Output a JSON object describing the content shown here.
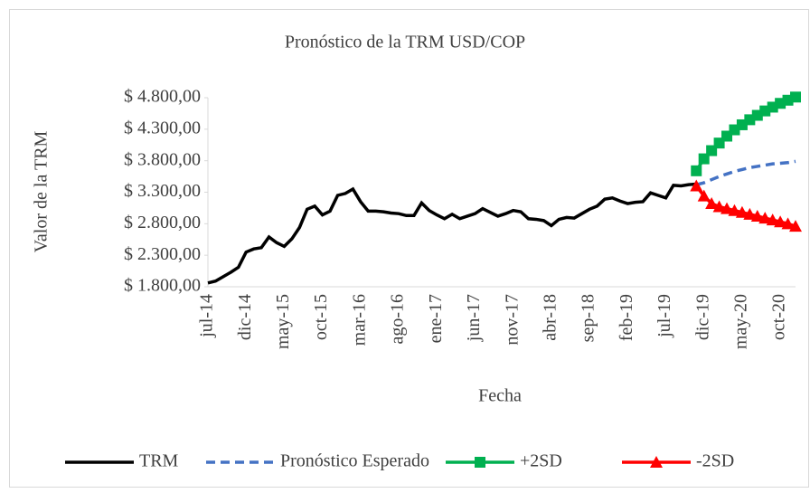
{
  "chart_data": {
    "type": "line",
    "title": "Pronóstico de la TRM USD/COP",
    "x_label": "Fecha",
    "y_label": "Valor de la TRM",
    "categories": [
      "jul-14",
      null,
      null,
      null,
      null,
      "dic-14",
      null,
      null,
      null,
      null,
      "may-15",
      null,
      null,
      null,
      null,
      "oct-15",
      null,
      null,
      null,
      null,
      "mar-16",
      null,
      null,
      null,
      null,
      "ago-16",
      null,
      null,
      null,
      null,
      "ene-17",
      null,
      null,
      null,
      null,
      "jun-17",
      null,
      null,
      null,
      null,
      "nov-17",
      null,
      null,
      null,
      null,
      "abr-18",
      null,
      null,
      null,
      null,
      "sep-18",
      null,
      null,
      null,
      null,
      "feb-19",
      null,
      null,
      null,
      null,
      "jul-19",
      null,
      null,
      null,
      null,
      "dic-19",
      null,
      null,
      null,
      null,
      "may-20",
      null,
      null,
      null,
      null,
      "oct-20",
      null,
      null
    ],
    "series": [
      {
        "name": "TRM",
        "color": "#000000",
        "style": "solid",
        "marker": "none",
        "values": [
          1860,
          1890,
          1960,
          2030,
          2110,
          2350,
          2400,
          2420,
          2590,
          2500,
          2440,
          2560,
          2740,
          3030,
          3080,
          2940,
          3000,
          3250,
          3280,
          3350,
          3150,
          3000,
          3000,
          2990,
          2970,
          2960,
          2930,
          2930,
          3130,
          3010,
          2940,
          2880,
          2950,
          2880,
          2920,
          2960,
          3040,
          2980,
          2920,
          2960,
          3010,
          2990,
          2880,
          2870,
          2850,
          2770,
          2870,
          2900,
          2890,
          2960,
          3030,
          3080,
          3190,
          3210,
          3160,
          3120,
          3140,
          3150,
          3290,
          3250,
          3210,
          3410,
          3400,
          3420,
          3430,
          null,
          null,
          null,
          null,
          null,
          null,
          null,
          null,
          null,
          null,
          null,
          null,
          null
        ]
      },
      {
        "name": "Pronóstico Esperado",
        "color": "#4472c4",
        "style": "dashed",
        "marker": "none",
        "values": [
          null,
          null,
          null,
          null,
          null,
          null,
          null,
          null,
          null,
          null,
          null,
          null,
          null,
          null,
          null,
          null,
          null,
          null,
          null,
          null,
          null,
          null,
          null,
          null,
          null,
          null,
          null,
          null,
          null,
          null,
          null,
          null,
          null,
          null,
          null,
          null,
          null,
          null,
          null,
          null,
          null,
          null,
          null,
          null,
          null,
          null,
          null,
          null,
          null,
          null,
          null,
          null,
          null,
          null,
          null,
          null,
          null,
          null,
          null,
          null,
          null,
          null,
          null,
          null,
          3420,
          3450,
          3500,
          3550,
          3590,
          3630,
          3660,
          3690,
          3710,
          3730,
          3750,
          3760,
          3770,
          3790
        ]
      },
      {
        "name": "+2SD",
        "color": "#00b050",
        "style": "solid",
        "marker": "square",
        "values": [
          null,
          null,
          null,
          null,
          null,
          null,
          null,
          null,
          null,
          null,
          null,
          null,
          null,
          null,
          null,
          null,
          null,
          null,
          null,
          null,
          null,
          null,
          null,
          null,
          null,
          null,
          null,
          null,
          null,
          null,
          null,
          null,
          null,
          null,
          null,
          null,
          null,
          null,
          null,
          null,
          null,
          null,
          null,
          null,
          null,
          null,
          null,
          null,
          null,
          null,
          null,
          null,
          null,
          null,
          null,
          null,
          null,
          null,
          null,
          null,
          null,
          null,
          null,
          null,
          3640,
          3830,
          3960,
          4080,
          4190,
          4290,
          4370,
          4450,
          4520,
          4590,
          4650,
          4710,
          4760,
          4810
        ]
      },
      {
        "name": "-2SD",
        "color": "#ff0000",
        "style": "solid",
        "marker": "triangle",
        "values": [
          null,
          null,
          null,
          null,
          null,
          null,
          null,
          null,
          null,
          null,
          null,
          null,
          null,
          null,
          null,
          null,
          null,
          null,
          null,
          null,
          null,
          null,
          null,
          null,
          null,
          null,
          null,
          null,
          null,
          null,
          null,
          null,
          null,
          null,
          null,
          null,
          null,
          null,
          null,
          null,
          null,
          null,
          null,
          null,
          null,
          null,
          null,
          null,
          null,
          null,
          null,
          null,
          null,
          null,
          null,
          null,
          null,
          null,
          null,
          null,
          null,
          null,
          null,
          null,
          3400,
          3240,
          3120,
          3070,
          3040,
          3010,
          2980,
          2950,
          2920,
          2890,
          2860,
          2830,
          2800,
          2760
        ]
      }
    ],
    "ylim": [
      1800,
      4800
    ],
    "yticks": [
      {
        "value": 1800,
        "label": "$ 1.800,00"
      },
      {
        "value": 2300,
        "label": "$ 2.300,00"
      },
      {
        "value": 2800,
        "label": "$ 2.800,00"
      },
      {
        "value": 3300,
        "label": "$ 3.300,00"
      },
      {
        "value": 3800,
        "label": "$ 3.800,00"
      },
      {
        "value": 4300,
        "label": "$ 4.300,00"
      },
      {
        "value": 4800,
        "label": "$ 4.800,00"
      }
    ],
    "legend": "bottom"
  }
}
